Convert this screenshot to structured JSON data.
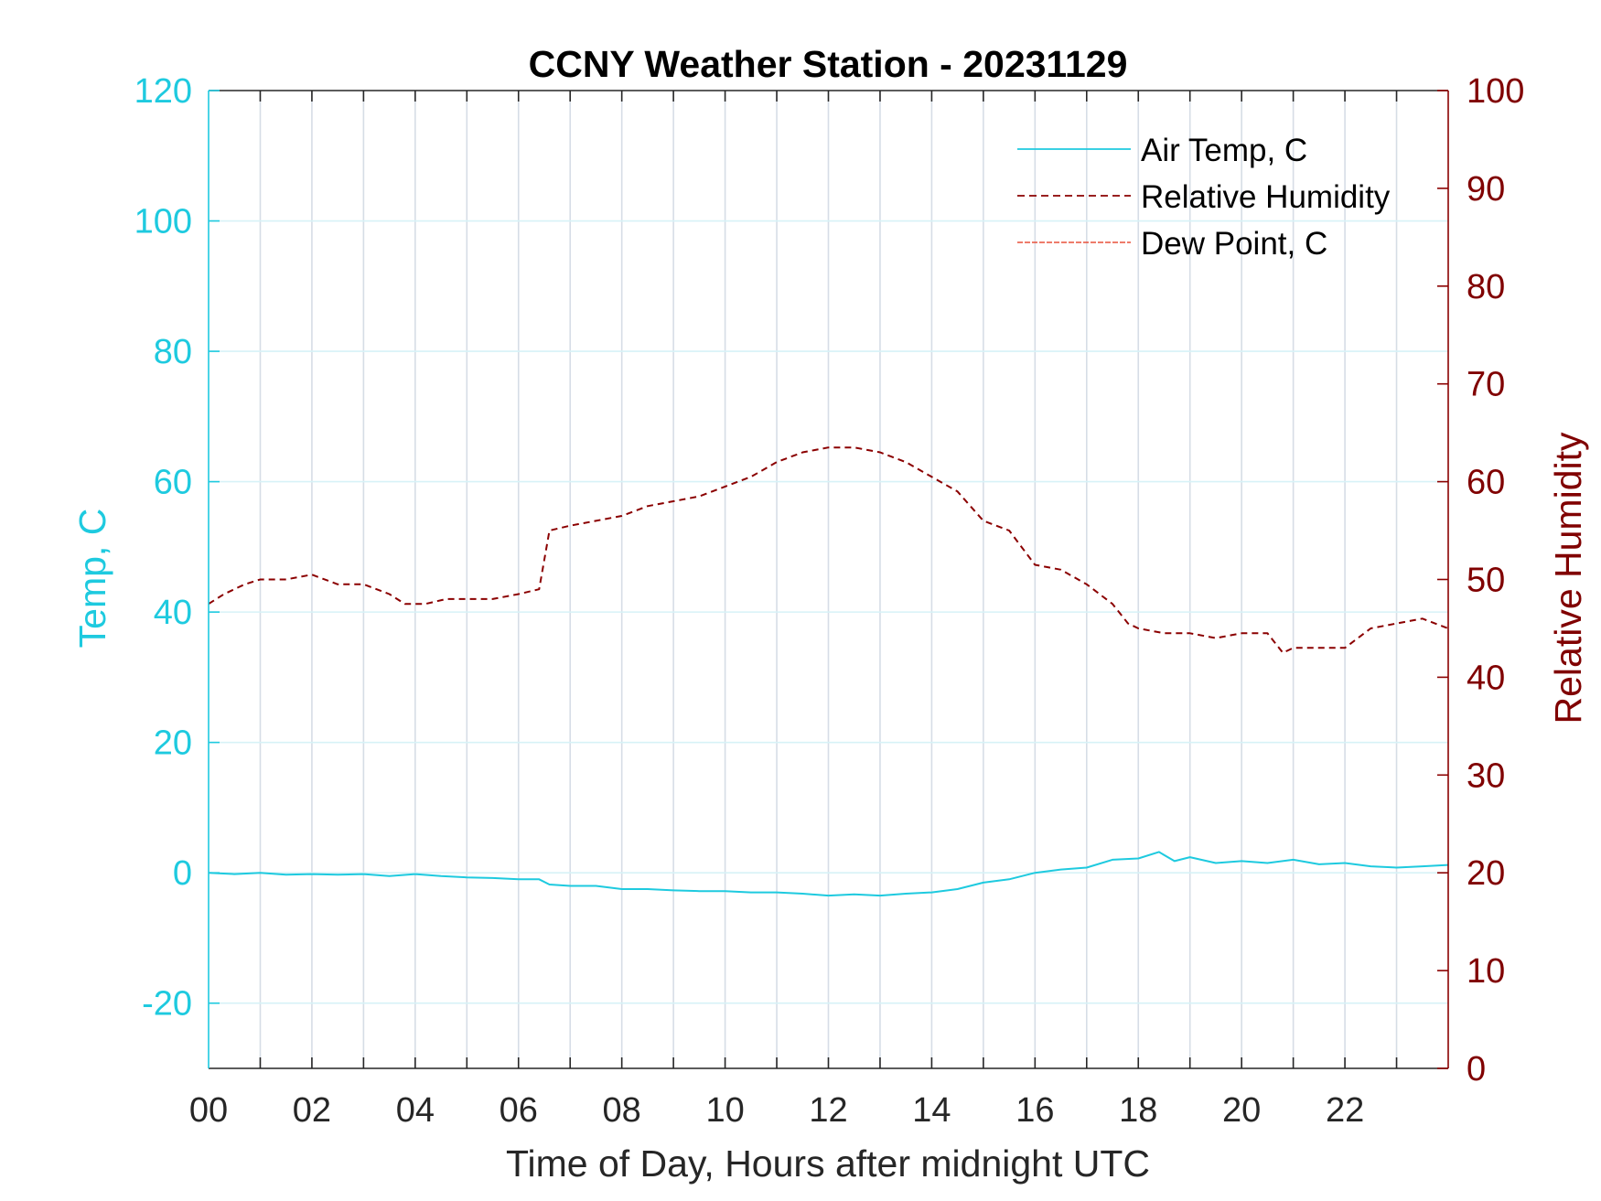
{
  "chart_data": {
    "type": "line",
    "title": "CCNY Weather Station - 20231129",
    "xlabel": "Time of Day, Hours after midnight UTC",
    "ylabel_left": "Temp, C",
    "ylabel_right": "Relative Humidity",
    "xlim": [
      0,
      24
    ],
    "ylim_left": [
      -30,
      120
    ],
    "ylim_right": [
      0,
      100
    ],
    "x_ticks": [
      0,
      2,
      4,
      6,
      8,
      10,
      12,
      14,
      16,
      18,
      20,
      22
    ],
    "x_tick_labels": [
      "00",
      "02",
      "04",
      "06",
      "08",
      "10",
      "12",
      "14",
      "16",
      "18",
      "20",
      "22"
    ],
    "y_left_ticks": [
      -20,
      0,
      20,
      40,
      60,
      80,
      100,
      120
    ],
    "y_left_tick_labels": [
      "-20",
      "0",
      "20",
      "40",
      "60",
      "80",
      "100",
      "120"
    ],
    "y_right_ticks": [
      0,
      10,
      20,
      30,
      40,
      50,
      60,
      70,
      80,
      90,
      100
    ],
    "y_right_tick_labels": [
      "0",
      "10",
      "20",
      "30",
      "40",
      "50",
      "60",
      "70",
      "80",
      "90",
      "100"
    ],
    "grid": true,
    "legend_position": "top-right",
    "colors": {
      "air_temp": "#1ecadf",
      "humidity": "#8b0000",
      "dew_point": "#e8503a",
      "vertical_grid": "#d6dde6",
      "horizontal_grid": "#d7f2f7",
      "axis_box": "#262626"
    },
    "series": [
      {
        "name": "Air Temp, C",
        "axis": "left",
        "style": "solid",
        "x": [
          0,
          0.5,
          1,
          1.5,
          2,
          2.5,
          3,
          3.5,
          4,
          4.5,
          5,
          5.5,
          6,
          6.4,
          6.6,
          7,
          7.5,
          8,
          8.5,
          9,
          9.5,
          10,
          10.5,
          11,
          11.5,
          12,
          12.5,
          13,
          13.5,
          14,
          14.5,
          15,
          15.5,
          16,
          16.5,
          17,
          17.5,
          18,
          18.4,
          18.7,
          19,
          19.5,
          20,
          20.5,
          21,
          21.5,
          22,
          22.5,
          23,
          23.5,
          24
        ],
        "values": [
          0,
          -0.2,
          0,
          -0.3,
          -0.2,
          -0.3,
          -0.2,
          -0.5,
          -0.2,
          -0.5,
          -0.7,
          -0.8,
          -1.0,
          -1.0,
          -1.8,
          -2.0,
          -2.0,
          -2.5,
          -2.5,
          -2.7,
          -2.8,
          -2.8,
          -3.0,
          -3.0,
          -3.2,
          -3.5,
          -3.3,
          -3.5,
          -3.2,
          -3.0,
          -2.5,
          -1.5,
          -1.0,
          0,
          0.5,
          0.8,
          2.0,
          2.2,
          3.2,
          1.8,
          2.4,
          1.5,
          1.8,
          1.5,
          2.0,
          1.3,
          1.5,
          1.0,
          0.8,
          1.0,
          1.2
        ]
      },
      {
        "name": "Relative Humidity",
        "axis": "right",
        "style": "dashed",
        "x": [
          0,
          0.3,
          0.7,
          1,
          1.5,
          2,
          2.5,
          3,
          3.5,
          3.8,
          4.2,
          4.6,
          5,
          5.5,
          6,
          6.4,
          6.6,
          7,
          7.5,
          8,
          8.5,
          9,
          9.5,
          10,
          10.5,
          11,
          11.5,
          12,
          12.5,
          13,
          13.5,
          14,
          14.5,
          15,
          15.5,
          16,
          16.5,
          17,
          17.5,
          17.8,
          18,
          18.5,
          19,
          19.5,
          20,
          20.5,
          20.8,
          21,
          21.5,
          22,
          22.5,
          23,
          23.5,
          24
        ],
        "values": [
          47.5,
          48.5,
          49.5,
          50,
          50,
          50.5,
          49.5,
          49.5,
          48.5,
          47.5,
          47.5,
          48,
          48,
          48,
          48.5,
          49,
          55,
          55.5,
          56,
          56.5,
          57.5,
          58,
          58.5,
          59.5,
          60.5,
          62,
          63,
          63.5,
          63.5,
          63,
          62,
          60.5,
          59,
          56,
          55,
          51.5,
          51,
          49.5,
          47.5,
          45.5,
          45,
          44.5,
          44.5,
          44,
          44.5,
          44.5,
          42.5,
          43,
          43,
          43,
          45,
          45.5,
          46,
          45
        ]
      },
      {
        "name": "Dew Point, C",
        "axis": "left",
        "style": "dash-dot",
        "x": [],
        "values": []
      }
    ]
  }
}
